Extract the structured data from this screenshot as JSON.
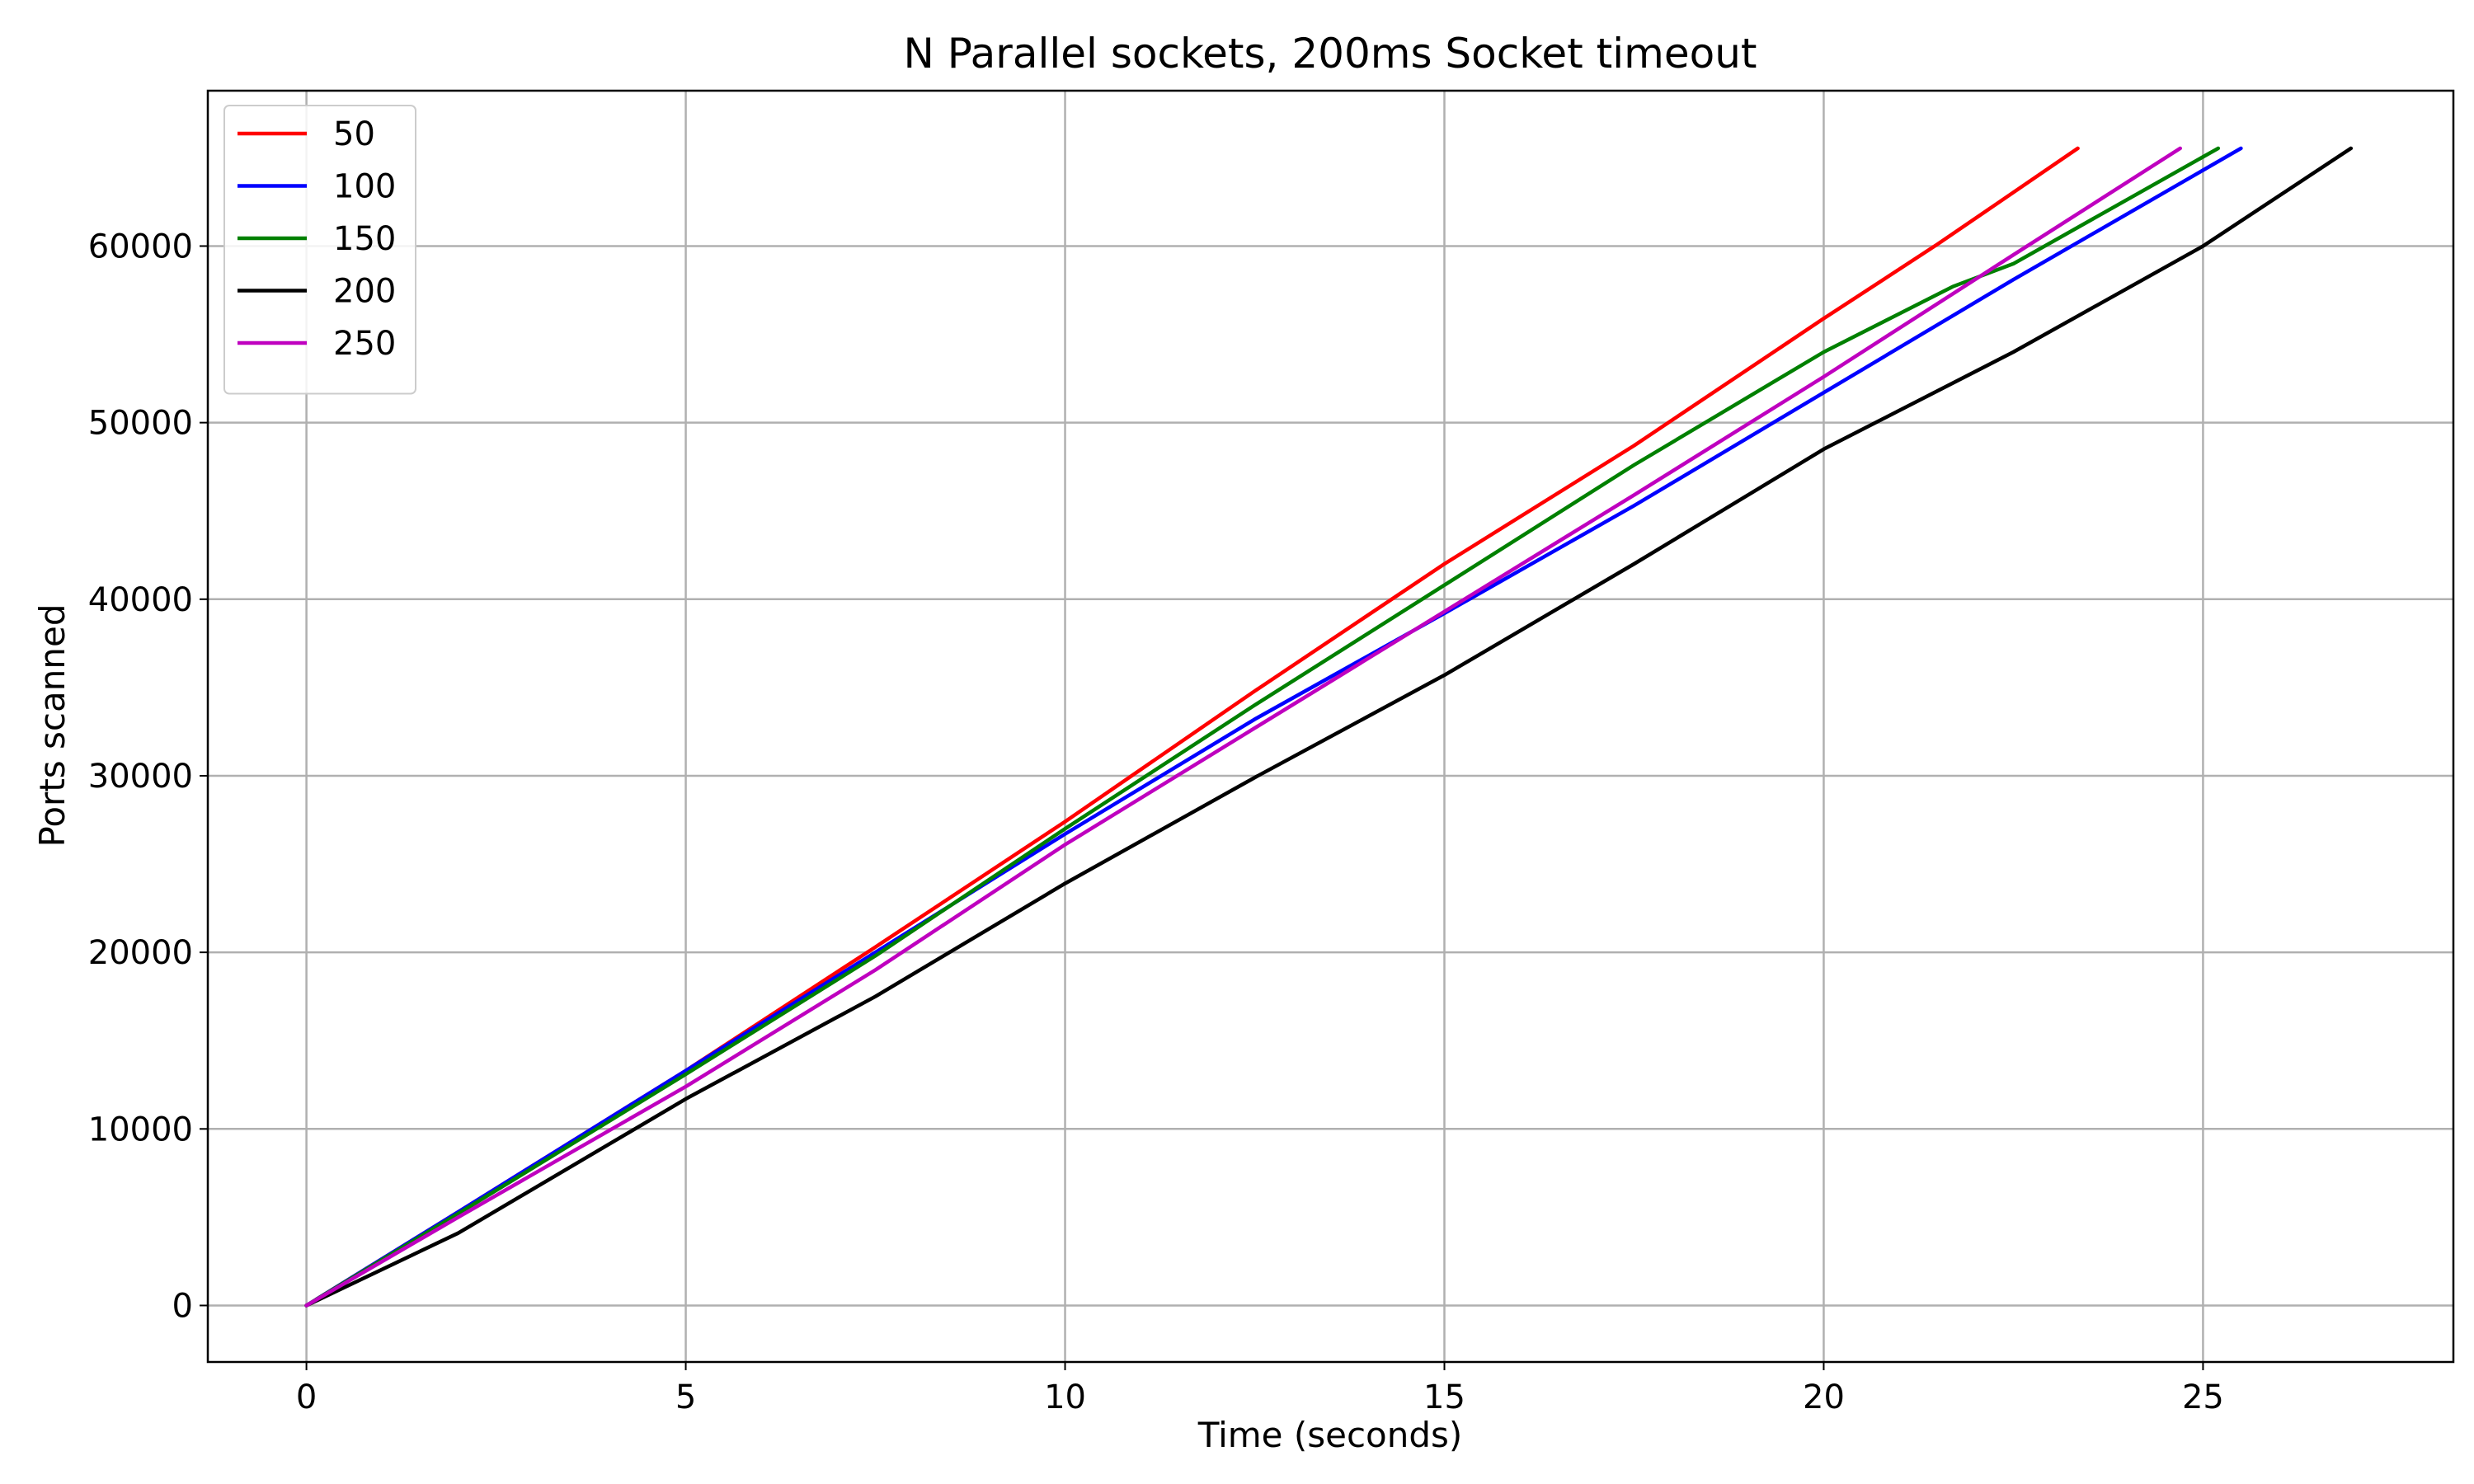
{
  "chart_data": {
    "type": "line",
    "title": "N Parallel sockets, 200ms Socket timeout",
    "xlabel": "Time (seconds)",
    "ylabel": "Ports scanned",
    "xlim": [
      -1.3,
      28.3
    ],
    "ylim": [
      -3200,
      68800
    ],
    "xticks": [
      0,
      5,
      10,
      15,
      20,
      25
    ],
    "yticks": [
      0,
      10000,
      20000,
      30000,
      40000,
      50000,
      60000
    ],
    "grid": true,
    "legend_position": "top-left",
    "series": [
      {
        "name": "50",
        "color": "#ff0000",
        "points": [
          [
            0,
            0
          ],
          [
            2,
            5300
          ],
          [
            5,
            13300
          ],
          [
            7.5,
            20300
          ],
          [
            10,
            27400
          ],
          [
            12.5,
            34800
          ],
          [
            15,
            42000
          ],
          [
            17.5,
            48700
          ],
          [
            20,
            55900
          ],
          [
            21.5,
            60100
          ],
          [
            23.35,
            65535
          ]
        ]
      },
      {
        "name": "100",
        "color": "#0000ff",
        "points": [
          [
            0,
            0
          ],
          [
            2,
            5300
          ],
          [
            5,
            13300
          ],
          [
            7.5,
            20000
          ],
          [
            10,
            26700
          ],
          [
            12.5,
            33200
          ],
          [
            15,
            39200
          ],
          [
            17.5,
            45300
          ],
          [
            20,
            51700
          ],
          [
            22.5,
            58100
          ],
          [
            25.5,
            65535
          ]
        ]
      },
      {
        "name": "150",
        "color": "#008000",
        "points": [
          [
            0,
            0
          ],
          [
            2,
            5200
          ],
          [
            5,
            13100
          ],
          [
            7.5,
            19800
          ],
          [
            10,
            27000
          ],
          [
            12.5,
            34000
          ],
          [
            15,
            40800
          ],
          [
            17.5,
            47600
          ],
          [
            20,
            54000
          ],
          [
            21.7,
            57700
          ],
          [
            22.5,
            59000
          ],
          [
            25.2,
            65535
          ]
        ]
      },
      {
        "name": "200",
        "color": "#000000",
        "points": [
          [
            0,
            0
          ],
          [
            2,
            4100
          ],
          [
            5,
            11700
          ],
          [
            7.5,
            17500
          ],
          [
            10,
            23900
          ],
          [
            12.5,
            29900
          ],
          [
            15,
            35700
          ],
          [
            17.5,
            42000
          ],
          [
            20,
            48500
          ],
          [
            22.5,
            54000
          ],
          [
            25,
            60000
          ],
          [
            26.95,
            65535
          ]
        ]
      },
      {
        "name": "250",
        "color": "#bf00bf",
        "points": [
          [
            0,
            0
          ],
          [
            2,
            5000
          ],
          [
            5,
            12400
          ],
          [
            7.5,
            19000
          ],
          [
            10,
            26100
          ],
          [
            12.5,
            32700
          ],
          [
            15,
            39300
          ],
          [
            17.5,
            45900
          ],
          [
            20,
            52600
          ],
          [
            22.5,
            59500
          ],
          [
            24.7,
            65535
          ]
        ]
      }
    ]
  }
}
